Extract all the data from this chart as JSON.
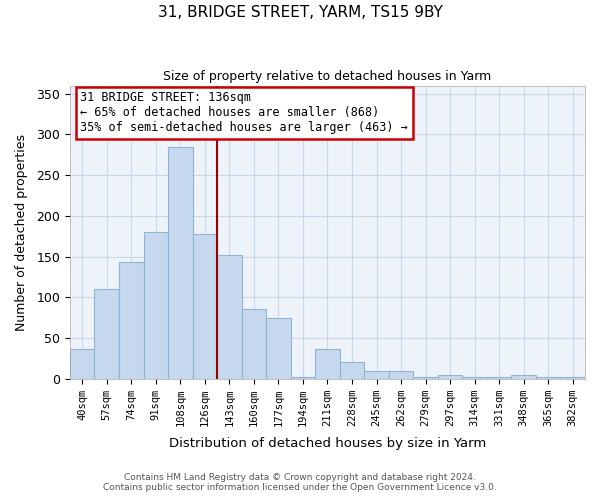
{
  "title": "31, BRIDGE STREET, YARM, TS15 9BY",
  "subtitle": "Size of property relative to detached houses in Yarm",
  "xlabel": "Distribution of detached houses by size in Yarm",
  "ylabel": "Number of detached properties",
  "bar_labels": [
    "40sqm",
    "57sqm",
    "74sqm",
    "91sqm",
    "108sqm",
    "126sqm",
    "143sqm",
    "160sqm",
    "177sqm",
    "194sqm",
    "211sqm",
    "228sqm",
    "245sqm",
    "262sqm",
    "279sqm",
    "297sqm",
    "314sqm",
    "331sqm",
    "348sqm",
    "365sqm",
    "382sqm"
  ],
  "bar_values": [
    37,
    110,
    143,
    180,
    285,
    178,
    152,
    85,
    74,
    2,
    36,
    20,
    10,
    10,
    2,
    4,
    2,
    2,
    5,
    2,
    2
  ],
  "bar_color": "#c5d8ee",
  "bar_edge_color": "#92b4d4",
  "grid_color": "#c8d8e8",
  "vline_color": "#990000",
  "vline_x_index": 6,
  "annotation_title": "31 BRIDGE STREET: 136sqm",
  "annotation_line1": "← 65% of detached houses are smaller (868)",
  "annotation_line2": "35% of semi-detached houses are larger (463) →",
  "annotation_box_color": "#ffffff",
  "annotation_box_edge": "#cc0000",
  "ylim": [
    0,
    360
  ],
  "yticks": [
    0,
    50,
    100,
    150,
    200,
    250,
    300,
    350
  ],
  "bg_color": "#eef3f9",
  "footer1": "Contains HM Land Registry data © Crown copyright and database right 2024.",
  "footer2": "Contains public sector information licensed under the Open Government Licence v3.0."
}
